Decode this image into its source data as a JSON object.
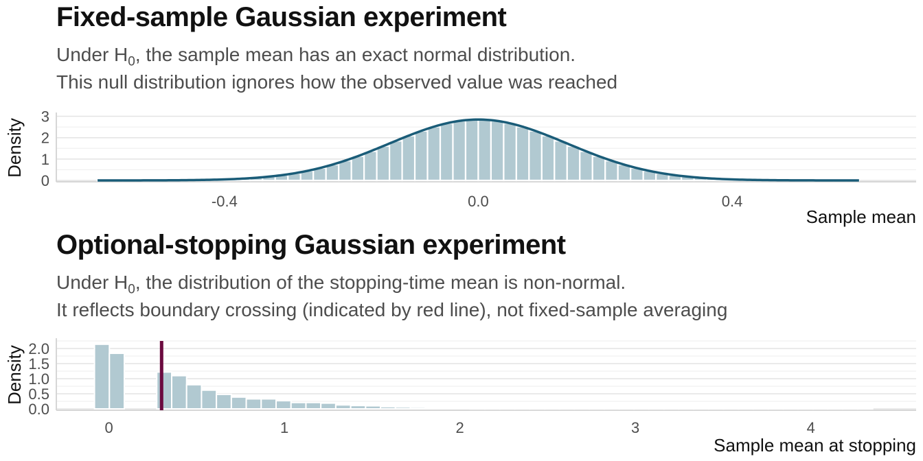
{
  "panels": [
    {
      "title": "Fixed-sample Gaussian experiment",
      "subtitle_1_pre": "Under H",
      "subtitle_1_sub": "0",
      "subtitle_1_post": ", the sample mean has an exact normal distribution.",
      "subtitle_2": "This null distribution ignores how the observed value was reached"
    },
    {
      "title": "Optional-stopping Gaussian experiment",
      "subtitle_1_pre": "Under H",
      "subtitle_1_sub": "0",
      "subtitle_1_post": ", the distribution of the stopping-time mean is non-normal.",
      "subtitle_2": "It reflects boundary crossing (indicated by red line), not fixed-sample averaging"
    }
  ],
  "colors": {
    "bar_fill": "#b1c9d1",
    "density_line": "#1a5c78",
    "boundary_line": "#6b0a3f",
    "grid": "#e3e3e3",
    "axis_text": "#4d4d4d"
  },
  "chart_data": [
    {
      "type": "bar",
      "title": "Fixed-sample Gaussian experiment",
      "xlabel": "Sample mean",
      "ylabel": "Density",
      "xlim": [
        -0.665,
        0.69
      ],
      "ylim": [
        0,
        3.05
      ],
      "x_ticks": [
        -0.4,
        0.0,
        0.4
      ],
      "x_tick_labels": [
        "-0.4",
        "0.0",
        "0.4"
      ],
      "y_ticks": [
        0,
        1,
        2,
        3
      ],
      "y_tick_labels": [
        "0",
        "1",
        "2",
        "3"
      ],
      "bin_width": 0.02,
      "bins_start": -0.6,
      "bins_end": 0.6,
      "normal_overlay": {
        "mean": 0.0,
        "sd": 0.14,
        "x_range": [
          -0.6,
          0.6
        ]
      },
      "grid": true
    },
    {
      "type": "bar",
      "title": "Optional-stopping Gaussian experiment",
      "xlabel": "Sample mean at stopping",
      "ylabel": "Density",
      "xlim": [
        -0.3,
        4.6
      ],
      "ylim": [
        0,
        2.25
      ],
      "x_ticks": [
        0,
        1,
        2,
        3,
        4
      ],
      "x_tick_labels": [
        "0",
        "1",
        "2",
        "3",
        "4"
      ],
      "y_ticks": [
        0.0,
        0.5,
        1.0,
        1.5,
        2.0
      ],
      "y_tick_labels": [
        "0.0",
        "0.5",
        "1.0",
        "1.5",
        "2.0"
      ],
      "bin_width": 0.085,
      "bins": [
        {
          "x": -0.04,
          "y": 2.14
        },
        {
          "x": 0.045,
          "y": 1.84
        },
        {
          "x": 0.315,
          "y": 1.22
        },
        {
          "x": 0.4,
          "y": 1.1
        },
        {
          "x": 0.485,
          "y": 0.8
        },
        {
          "x": 0.57,
          "y": 0.62
        },
        {
          "x": 0.655,
          "y": 0.48
        },
        {
          "x": 0.74,
          "y": 0.39
        },
        {
          "x": 0.825,
          "y": 0.33
        },
        {
          "x": 0.91,
          "y": 0.33
        },
        {
          "x": 0.995,
          "y": 0.27
        },
        {
          "x": 1.08,
          "y": 0.21
        },
        {
          "x": 1.165,
          "y": 0.21
        },
        {
          "x": 1.25,
          "y": 0.19
        },
        {
          "x": 1.335,
          "y": 0.13
        },
        {
          "x": 1.42,
          "y": 0.11
        },
        {
          "x": 1.505,
          "y": 0.1
        },
        {
          "x": 1.59,
          "y": 0.07
        },
        {
          "x": 1.675,
          "y": 0.06
        },
        {
          "x": 1.76,
          "y": 0.05
        },
        {
          "x": 1.845,
          "y": 0.03
        },
        {
          "x": 1.93,
          "y": 0.02
        },
        {
          "x": 2.015,
          "y": 0.02
        },
        {
          "x": 2.1,
          "y": 0.01
        },
        {
          "x": 2.185,
          "y": 0.01
        },
        {
          "x": 2.27,
          "y": 0.01
        },
        {
          "x": 2.355,
          "y": 0.01
        },
        {
          "x": 2.44,
          "y": 0.01
        },
        {
          "x": 2.525,
          "y": 0.01
        },
        {
          "x": 2.61,
          "y": 0.01
        },
        {
          "x": 2.695,
          "y": 0.01
        },
        {
          "x": 2.78,
          "y": 0.01
        },
        {
          "x": 2.865,
          "y": 0.01
        },
        {
          "x": 2.95,
          "y": 0.01
        },
        {
          "x": 3.035,
          "y": 0.01
        },
        {
          "x": 3.12,
          "y": 0.01
        },
        {
          "x": 3.205,
          "y": 0.01
        },
        {
          "x": 3.29,
          "y": 0.01
        },
        {
          "x": 3.375,
          "y": 0.01
        },
        {
          "x": 3.46,
          "y": 0.01
        },
        {
          "x": 3.545,
          "y": 0.01
        },
        {
          "x": 3.63,
          "y": 0.01
        },
        {
          "x": 3.715,
          "y": 0.01
        },
        {
          "x": 3.8,
          "y": 0.01
        },
        {
          "x": 3.885,
          "y": 0.01
        },
        {
          "x": 3.97,
          "y": 0.01
        },
        {
          "x": 4.055,
          "y": 0.01
        },
        {
          "x": 4.14,
          "y": 0.01
        },
        {
          "x": 4.225,
          "y": 0.01
        },
        {
          "x": 4.31,
          "y": 0.01
        }
      ],
      "boundary_x": 0.3,
      "grid": true
    }
  ]
}
